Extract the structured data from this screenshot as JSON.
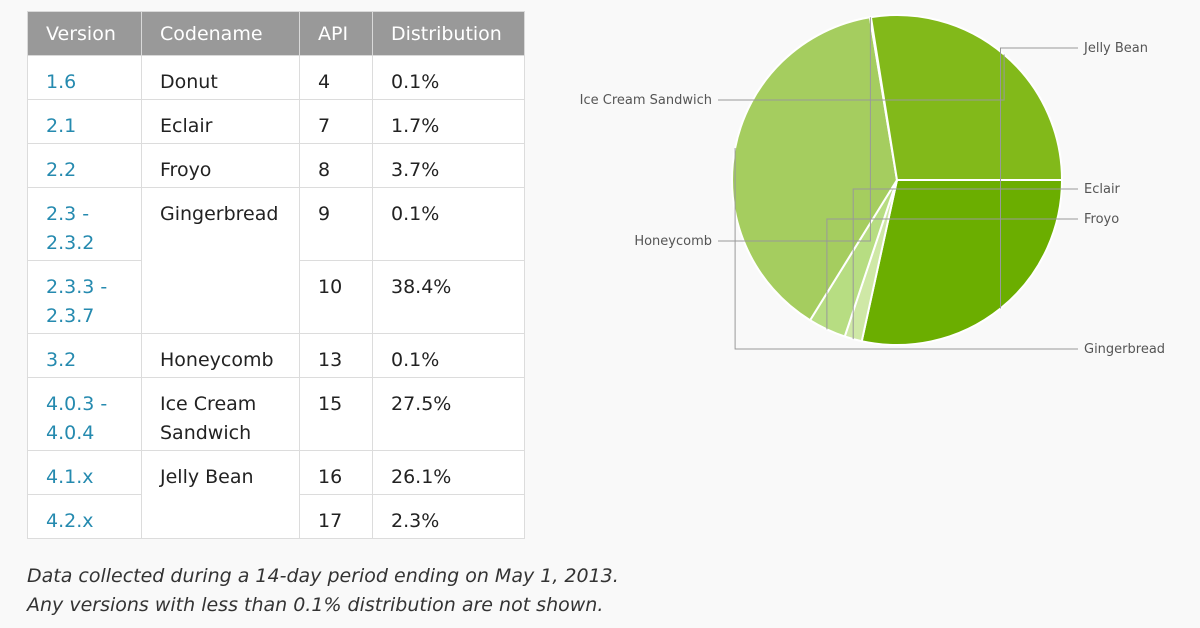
{
  "table": {
    "headers": [
      "Version",
      "Codename",
      "API",
      "Distribution"
    ],
    "rows": [
      {
        "version": "1.6",
        "codename": "Donut",
        "api": "4",
        "dist": "0.1%"
      },
      {
        "version": "2.1",
        "codename": "Eclair",
        "api": "7",
        "dist": "1.7%"
      },
      {
        "version": "2.2",
        "codename": "Froyo",
        "api": "8",
        "dist": "3.7%"
      },
      {
        "version": "2.3 - 2.3.2",
        "codename": "Gingerbread",
        "api": "9",
        "dist": "0.1%"
      },
      {
        "version": "2.3.3 - 2.3.7",
        "codename": "",
        "api": "10",
        "dist": "38.4%"
      },
      {
        "version": "3.2",
        "codename": "Honeycomb",
        "api": "13",
        "dist": "0.1%"
      },
      {
        "version": "4.0.3 - 4.0.4",
        "codename": "Ice Cream Sandwich",
        "api": "15",
        "dist": "27.5%"
      },
      {
        "version": "4.1.x",
        "codename": "Jelly Bean",
        "api": "16",
        "dist": "26.1%"
      },
      {
        "version": "4.2.x",
        "codename": "",
        "api": "17",
        "dist": "2.3%"
      }
    ]
  },
  "note": {
    "line1": "Data collected during a 14-day period ending on May 1, 2013.",
    "line2": "Any versions with less than 0.1% distribution are not shown."
  },
  "colors": {
    "header_bg": "#999999",
    "version_link": "#258aaf",
    "pie_leader": "#999999"
  },
  "chart_data": {
    "type": "pie",
    "title": "",
    "slices": [
      {
        "label": "Jelly Bean",
        "value": 28.4,
        "color": "#6bae00"
      },
      {
        "label": "Eclair",
        "value": 1.7,
        "color": "#cfe8a6"
      },
      {
        "label": "Froyo",
        "value": 3.7,
        "color": "#b7dd82"
      },
      {
        "label": "Gingerbread",
        "value": 38.5,
        "color": "#a5cd5f"
      },
      {
        "label": "Honeycomb",
        "value": 0.1,
        "color": "#93c241"
      },
      {
        "label": "Ice Cream Sandwich",
        "value": 27.5,
        "color": "#82b91a"
      }
    ]
  }
}
